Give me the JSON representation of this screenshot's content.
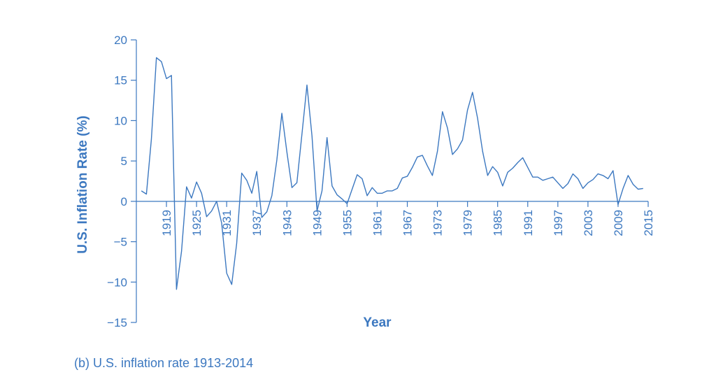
{
  "caption": "(b) U.S. inflation rate 1913-2014",
  "colors": {
    "line": "#3c78c0",
    "axis": "#3c78c0",
    "text": "#3c78c0"
  },
  "chart_data": {
    "type": "line",
    "title": "",
    "xlabel": "Year",
    "ylabel": "U.S. Inflation Rate (%)",
    "xlim": [
      1913,
      2015
    ],
    "ylim": [
      -15,
      20
    ],
    "x_ticks": [
      1919,
      1925,
      1931,
      1937,
      1943,
      1949,
      1955,
      1961,
      1967,
      1973,
      1979,
      1985,
      1991,
      1997,
      2003,
      2009,
      2015
    ],
    "y_ticks": [
      20,
      15,
      10,
      5,
      0,
      -5,
      -10,
      -15
    ],
    "y_tick_labels": [
      "20",
      "15",
      "10",
      "5",
      "0",
      "−5",
      "−10",
      "−15"
    ],
    "grid": false,
    "legend": "none",
    "series": [
      {
        "x": [
          1914,
          1915,
          1916,
          1917,
          1918,
          1919,
          1920,
          1921,
          1922,
          1923,
          1924,
          1925,
          1926,
          1927,
          1928,
          1929,
          1930,
          1931,
          1932,
          1933,
          1934,
          1935,
          1936,
          1937,
          1938,
          1939,
          1940,
          1941,
          1942,
          1943,
          1944,
          1945,
          1946,
          1947,
          1948,
          1949,
          1950,
          1951,
          1952,
          1953,
          1954,
          1955,
          1956,
          1957,
          1958,
          1959,
          1960,
          1961,
          1962,
          1963,
          1964,
          1965,
          1966,
          1967,
          1968,
          1969,
          1970,
          1971,
          1972,
          1973,
          1974,
          1975,
          1976,
          1977,
          1978,
          1979,
          1980,
          1981,
          1982,
          1983,
          1984,
          1985,
          1986,
          1987,
          1988,
          1989,
          1990,
          1991,
          1992,
          1993,
          1994,
          1995,
          1996,
          1997,
          1998,
          1999,
          2000,
          2001,
          2002,
          2003,
          2004,
          2005,
          2006,
          2007,
          2008,
          2009,
          2010,
          2011,
          2012,
          2013,
          2014
        ],
        "y": [
          1.3,
          0.9,
          7.7,
          17.8,
          17.3,
          15.2,
          15.6,
          -10.9,
          -6.2,
          1.8,
          0.4,
          2.4,
          1.0,
          -1.9,
          -1.2,
          0.0,
          -2.7,
          -8.9,
          -10.3,
          -5.2,
          3.5,
          2.6,
          1.0,
          3.7,
          -2.0,
          -1.3,
          0.7,
          5.1,
          10.9,
          6.1,
          1.7,
          2.3,
          8.3,
          14.4,
          8.1,
          -1.2,
          1.3,
          7.9,
          1.9,
          0.8,
          0.3,
          -0.3,
          1.5,
          3.3,
          2.8,
          0.7,
          1.7,
          1.0,
          1.0,
          1.3,
          1.3,
          1.6,
          2.9,
          3.1,
          4.2,
          5.5,
          5.7,
          4.4,
          3.2,
          6.2,
          11.1,
          9.1,
          5.8,
          6.5,
          7.6,
          11.3,
          13.5,
          10.3,
          6.2,
          3.2,
          4.3,
          3.6,
          1.9,
          3.6,
          4.1,
          4.8,
          5.4,
          4.2,
          3.0,
          3.0,
          2.6,
          2.8,
          3.0,
          2.3,
          1.6,
          2.2,
          3.4,
          2.8,
          1.6,
          2.3,
          2.7,
          3.4,
          3.2,
          2.8,
          3.8,
          -0.4,
          1.6,
          3.2,
          2.1,
          1.5,
          1.6
        ]
      }
    ]
  }
}
